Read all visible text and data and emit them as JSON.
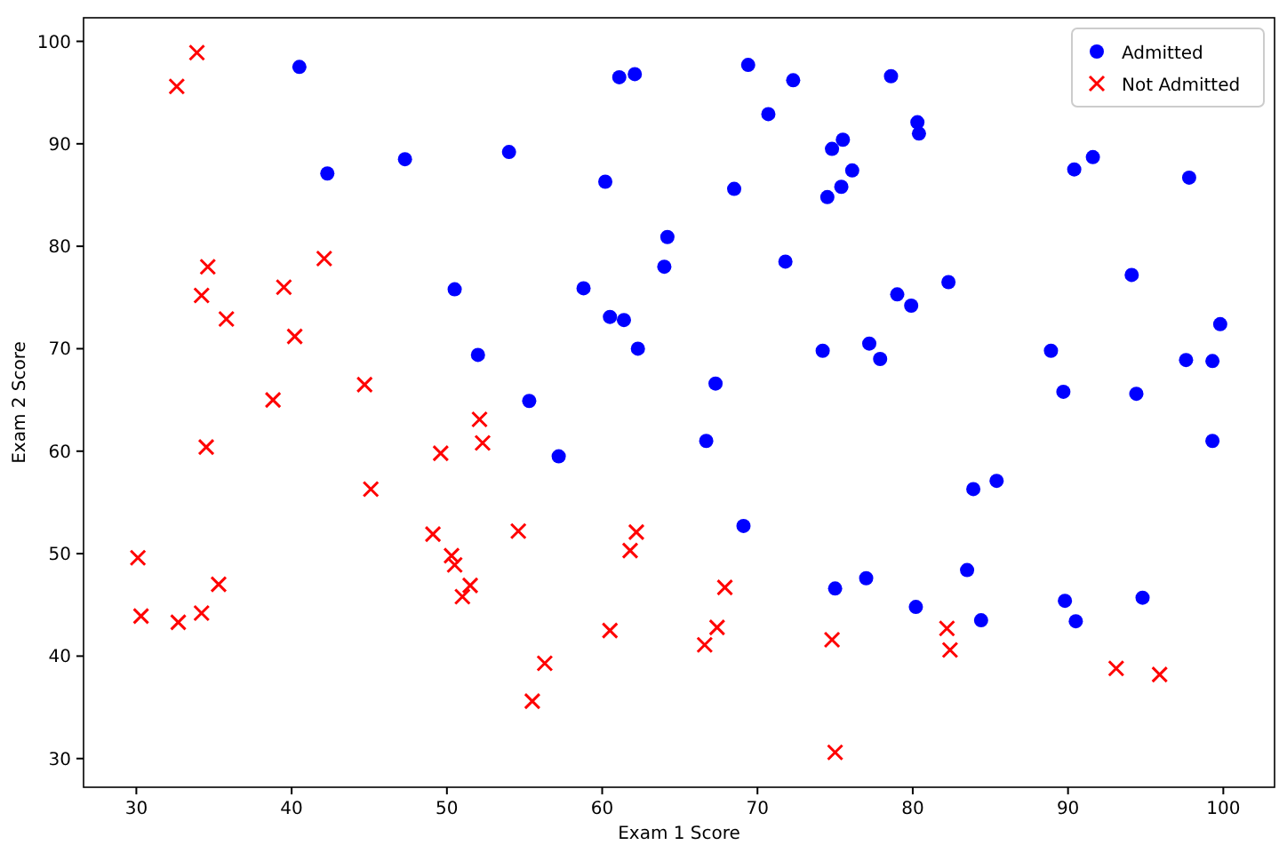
{
  "chart_data": {
    "type": "scatter",
    "xlabel": "Exam 1 Score",
    "ylabel": "Exam 2 Score",
    "xlim": [
      26.6,
      103.3
    ],
    "ylim": [
      27.2,
      102.3
    ],
    "xticks": [
      30,
      40,
      50,
      60,
      70,
      80,
      90,
      100
    ],
    "yticks": [
      30,
      40,
      50,
      60,
      70,
      80,
      90,
      100
    ],
    "legend": "top right",
    "series": [
      {
        "name": "Admitted",
        "color": "#0000ff",
        "marker": "circle",
        "x": [
          60.2,
          79.0,
          61.1,
          75.0,
          76.1,
          84.4,
          82.3,
          69.4,
          54.0,
          69.1,
          70.7,
          77.0,
          89.7,
          77.9,
          62.3,
          80.2,
          61.4,
          85.4,
          52.0,
          64.2,
          83.9,
          94.4,
          77.2,
          97.8,
          62.1,
          91.6,
          79.9,
          99.3,
          90.5,
          97.6,
          74.2,
          71.8,
          75.4,
          40.5,
          80.3,
          66.7,
          64.0,
          72.3,
          60.5,
          58.8,
          99.8,
          47.3,
          50.5,
          88.9,
          94.8,
          67.3,
          57.2,
          80.4,
          68.5,
          75.5,
          78.6,
          94.1,
          90.4,
          74.5,
          89.8,
          83.5,
          42.3,
          99.3,
          55.3,
          74.8
        ],
        "values": [
          86.3,
          75.3,
          96.5,
          46.6,
          87.4,
          43.5,
          76.5,
          97.7,
          89.2,
          52.7,
          92.9,
          47.6,
          65.8,
          69.0,
          70.0,
          44.8,
          72.8,
          57.1,
          69.4,
          80.9,
          56.3,
          65.6,
          70.5,
          86.7,
          96.8,
          88.7,
          74.2,
          61.0,
          43.4,
          68.9,
          69.8,
          78.5,
          85.8,
          97.5,
          92.1,
          61.0,
          78.0,
          96.2,
          73.1,
          75.9,
          72.4,
          88.5,
          75.8,
          69.8,
          45.7,
          66.6,
          59.5,
          91.0,
          85.6,
          90.4,
          96.6,
          77.2,
          87.5,
          84.8,
          45.4,
          48.4,
          87.1,
          68.8,
          64.9,
          89.5
        ]
      },
      {
        "name": "Not Admitted",
        "color": "#ff0000",
        "marker": "cross",
        "x": [
          34.6,
          30.3,
          35.8,
          45.1,
          95.9,
          75.0,
          39.5,
          67.9,
          67.4,
          50.5,
          34.2,
          93.1,
          61.8,
          38.8,
          52.1,
          40.2,
          54.6,
          33.9,
          74.8,
          34.2,
          51.5,
          82.4,
          51.0,
          62.2,
          34.5,
          50.3,
          49.6,
          32.6,
          35.3,
          56.3,
          30.1,
          44.7,
          66.6,
          49.1,
          32.7,
          60.5,
          82.2,
          42.1,
          52.3,
          55.5
        ],
        "values": [
          78.0,
          43.9,
          72.9,
          56.3,
          38.2,
          30.6,
          76.0,
          46.7,
          42.8,
          48.9,
          44.2,
          38.8,
          50.3,
          65.0,
          63.1,
          71.2,
          52.2,
          98.9,
          41.6,
          75.2,
          46.9,
          40.6,
          45.8,
          52.1,
          60.4,
          49.8,
          59.8,
          95.6,
          47.0,
          39.3,
          49.6,
          66.5,
          41.1,
          51.9,
          43.3,
          42.5,
          42.7,
          78.8,
          60.8,
          35.6
        ]
      }
    ]
  }
}
